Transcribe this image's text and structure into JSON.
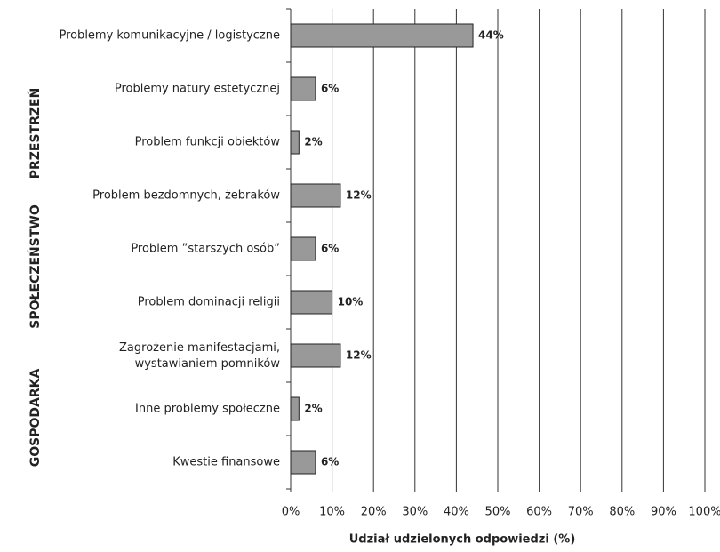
{
  "chart_data": {
    "type": "bar",
    "orientation": "horizontal",
    "categories": [
      "Problemy komunikacyjne / logistyczne",
      "Problemy natury estetycznej",
      "Problem funkcji obiektów",
      "Problem bezdomnych, żebraków",
      "Problem ”starszych osób”",
      "Problem dominacji religii",
      "Zagrożenie manifestacjami,\nwystawianiem pomników",
      "Inne problemy społeczne",
      "Kwestie finansowe"
    ],
    "values": [
      44,
      6,
      2,
      12,
      6,
      10,
      12,
      2,
      6
    ],
    "value_labels": [
      "44%",
      "6%",
      "2%",
      "12%",
      "6%",
      "10%",
      "12%",
      "2%",
      "6%"
    ],
    "color": "#999999",
    "xlabel": "Udział udzielonych odpowiedzi (%)",
    "xlim": [
      0,
      100
    ],
    "xticks": [
      {
        "value": 0,
        "label": "0%"
      },
      {
        "value": 10,
        "label": "10%"
      },
      {
        "value": 20,
        "label": "20%"
      },
      {
        "value": 30,
        "label": "30%"
      },
      {
        "value": 40,
        "label": "40%"
      },
      {
        "value": 50,
        "label": "50%"
      },
      {
        "value": 60,
        "label": "60%"
      },
      {
        "value": 70,
        "label": "70%"
      },
      {
        "value": 80,
        "label": "80%"
      },
      {
        "value": 90,
        "label": "90%"
      },
      {
        "value": 100,
        "label": "100%"
      }
    ],
    "grid": true,
    "group_labels": [
      "PRZESTRZEŃ",
      "SPOŁECZEŃSTWO",
      "GOSPODARKA"
    ]
  }
}
